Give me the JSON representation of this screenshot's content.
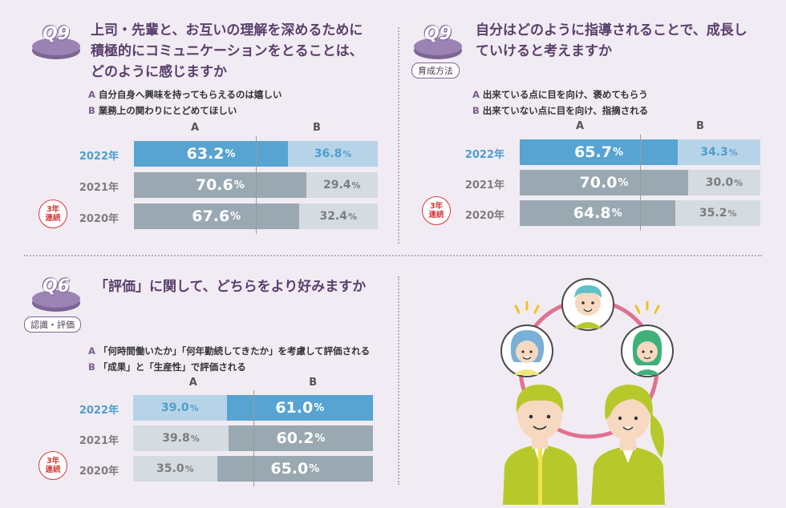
{
  "panels": [
    {
      "id": "q9a",
      "badge": "Q9",
      "tag": "",
      "title": [
        "上司・先輩と、お互いの理解を深めるために",
        "積極的にコミュニケーションをとることは、",
        "どのように感じますか"
      ],
      "options": [
        {
          "key": "A",
          "text": "自分自身へ興味を持ってもらえるのは嬉しい"
        },
        {
          "key": "B",
          "text": "業務上の関わりにとどめてほしい"
        }
      ],
      "consecutive": [
        "3年",
        "連続"
      ]
    },
    {
      "id": "q9b",
      "badge": "Q9",
      "tag": "育成方法",
      "title": [
        "自分はどのように指導されることで、成長し",
        "ていけると考えますか"
      ],
      "options": [
        {
          "key": "A",
          "text": "出来ている点に目を向け、褒めてもらう"
        },
        {
          "key": "B",
          "text": "出来ていない点に目を向け、指摘される"
        }
      ],
      "consecutive": [
        "3年",
        "連続"
      ]
    },
    {
      "id": "q6",
      "badge": "Q6",
      "tag": "認識・評価",
      "title": [
        "「評価」に関して、どちらをより好みますか"
      ],
      "options": [
        {
          "key": "A",
          "text": "「何時間働いたか」「何年勤続してきたか」を考慮して評価される"
        },
        {
          "key": "B",
          "text": "「成果」と「生産性」で評価される"
        }
      ],
      "consecutive": [
        "3年",
        "連続"
      ]
    }
  ],
  "colors": {
    "current_major": "#57a4d2",
    "current_minor": "#b7d3e8",
    "past_major": "#9aa8b2",
    "past_minor": "#d4dbe1",
    "text_major": "#ffffff",
    "text_minor_current": "#4d9fcd",
    "text_minor_past": "#7d7d7d"
  },
  "chart_data": [
    {
      "type": "bar",
      "stacked": true,
      "orientation": "horizontal",
      "title": "上司・先輩と、お互いの理解を深めるために積極的にコミュニケーションをとることは、どのように感じますか",
      "categories": [
        "2022年",
        "2021年",
        "2020年"
      ],
      "series": [
        {
          "name": "A",
          "values": [
            63.2,
            70.6,
            67.6
          ]
        },
        {
          "name": "B",
          "values": [
            36.8,
            29.4,
            32.4
          ]
        }
      ],
      "unit": "%",
      "xlim": [
        0,
        100
      ]
    },
    {
      "type": "bar",
      "stacked": true,
      "orientation": "horizontal",
      "title": "自分はどのように指導されることで、成長していけると考えますか",
      "categories": [
        "2022年",
        "2021年",
        "2020年"
      ],
      "series": [
        {
          "name": "A",
          "values": [
            65.7,
            70.0,
            64.8
          ]
        },
        {
          "name": "B",
          "values": [
            34.3,
            30.0,
            35.2
          ]
        }
      ],
      "unit": "%",
      "xlim": [
        0,
        100
      ]
    },
    {
      "type": "bar",
      "stacked": true,
      "orientation": "horizontal",
      "title": "「評価」に関して、どちらをより好みますか",
      "categories": [
        "2022年",
        "2021年",
        "2020年"
      ],
      "series": [
        {
          "name": "A",
          "values": [
            39.0,
            39.8,
            35.0
          ]
        },
        {
          "name": "B",
          "values": [
            61.0,
            60.2,
            65.0
          ]
        }
      ],
      "unit": "%",
      "xlim": [
        0,
        100
      ]
    }
  ]
}
